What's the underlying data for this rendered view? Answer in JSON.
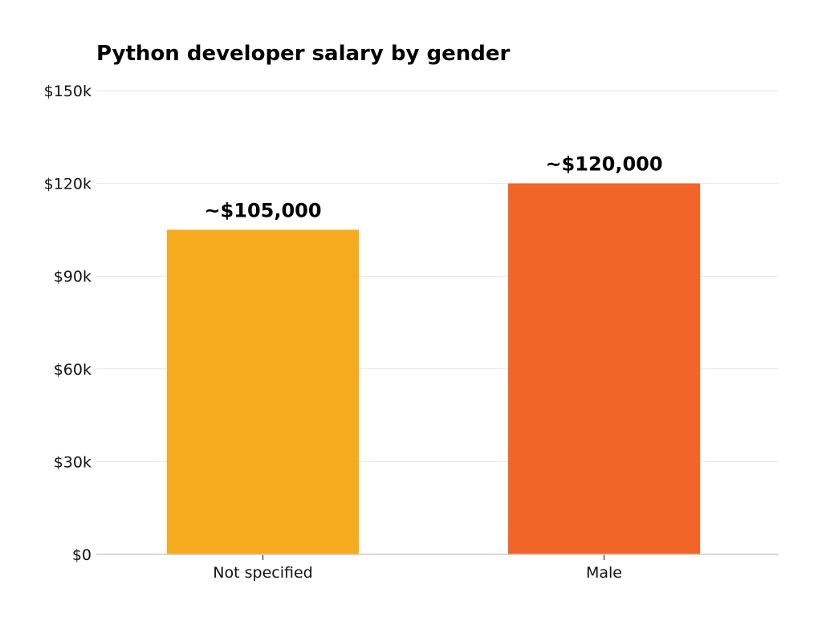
{
  "chart_data": {
    "type": "bar",
    "title": "Python developer salary by gender",
    "xlabel": "",
    "ylabel": "",
    "categories": [
      "Not specified",
      "Male"
    ],
    "values": [
      105000,
      120000
    ],
    "data_labels": [
      "~$105,000",
      "~$120,000"
    ],
    "colors": [
      "#f6ab1f",
      "#f26529"
    ],
    "ylim": [
      0,
      150000
    ],
    "yticks": [
      0,
      30000,
      60000,
      90000,
      120000,
      150000
    ],
    "ytick_labels": [
      "$0",
      "$30k",
      "$60k",
      "$90k",
      "$120k",
      "$150k"
    ],
    "grid": true,
    "legend": "none"
  }
}
